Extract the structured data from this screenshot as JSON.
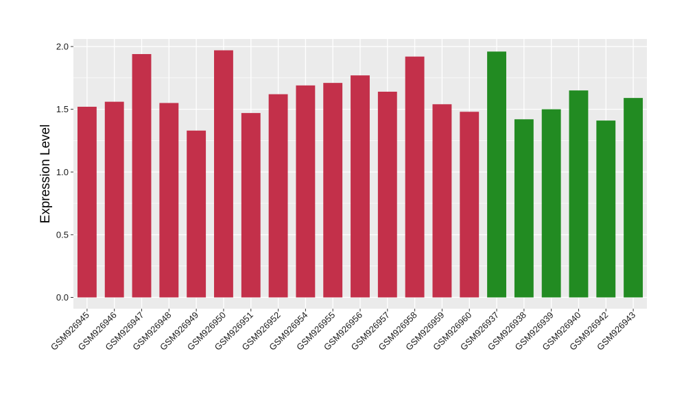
{
  "chart_data": {
    "type": "bar",
    "ylabel": "Expression Level",
    "xlabel": "",
    "ylim": [
      -0.09,
      2.06
    ],
    "yticks": [
      "0.0",
      "0.5",
      "1.0",
      "1.5",
      "2.0"
    ],
    "ytick_values": [
      0.0,
      0.5,
      1.0,
      1.5,
      2.0
    ],
    "grid": true,
    "panel_background": "#ebebeb",
    "grid_color": "#ffffff",
    "colors": {
      "group_1": "#c3304a",
      "group_2": "#228b22"
    },
    "categories": [
      "GSM926945",
      "GSM926946",
      "GSM926947",
      "GSM926948",
      "GSM926949",
      "GSM926950",
      "GSM926951",
      "GSM926952",
      "GSM926954",
      "GSM926955",
      "GSM926956",
      "GSM926957",
      "GSM926958",
      "GSM926959",
      "GSM926960",
      "GSM926937",
      "GSM926938",
      "GSM926939",
      "GSM926940",
      "GSM926942",
      "GSM926943"
    ],
    "values": [
      1.52,
      1.56,
      1.94,
      1.55,
      1.33,
      1.97,
      1.47,
      1.62,
      1.69,
      1.71,
      1.77,
      1.64,
      1.92,
      1.54,
      1.48,
      1.96,
      1.42,
      1.5,
      1.65,
      1.41,
      1.59
    ],
    "bar_groups": [
      "group_1",
      "group_1",
      "group_1",
      "group_1",
      "group_1",
      "group_1",
      "group_1",
      "group_1",
      "group_1",
      "group_1",
      "group_1",
      "group_1",
      "group_1",
      "group_1",
      "group_1",
      "group_2",
      "group_2",
      "group_2",
      "group_2",
      "group_2",
      "group_2"
    ]
  }
}
